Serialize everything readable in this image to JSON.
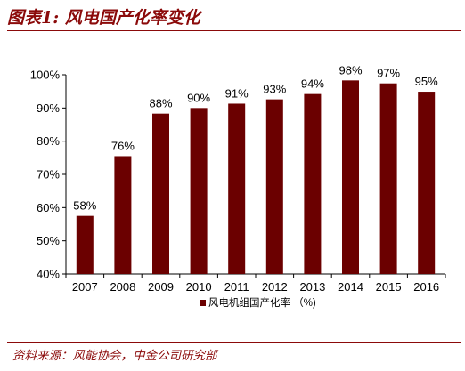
{
  "figure": {
    "title": "图表1: 风电国产化率变化",
    "source": "资料来源：风能协会，中金公司研究部"
  },
  "chart_data": {
    "type": "bar",
    "categories": [
      "2007",
      "2008",
      "2009",
      "2010",
      "2011",
      "2012",
      "2013",
      "2014",
      "2015",
      "2016"
    ],
    "series": [
      {
        "name": "风电机组国产化率",
        "values": [
          57.5,
          75.5,
          88.3,
          90.0,
          91.3,
          92.6,
          94.2,
          98.3,
          97.4,
          94.9
        ],
        "labels": [
          "58%",
          "76%",
          "88%",
          "90%",
          "91%",
          "93%",
          "94%",
          "98%",
          "97%",
          "95%"
        ],
        "color": "#6b0000"
      }
    ],
    "legend_text": "风电机组国产化率 （%)",
    "legend_position": "bottom-center",
    "ylim": [
      40,
      100
    ],
    "yticks": [
      40,
      50,
      60,
      70,
      80,
      90,
      100
    ],
    "ytick_labels": [
      "40%",
      "50%",
      "60%",
      "70%",
      "80%",
      "90%",
      "100%"
    ],
    "grid": false
  }
}
